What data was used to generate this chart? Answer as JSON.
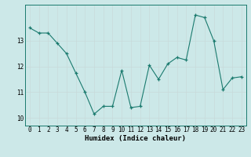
{
  "x": [
    0,
    1,
    2,
    3,
    4,
    5,
    6,
    7,
    8,
    9,
    10,
    11,
    12,
    13,
    14,
    15,
    16,
    17,
    18,
    19,
    20,
    21,
    22,
    23
  ],
  "y": [
    13.5,
    13.3,
    13.3,
    12.9,
    12.5,
    11.75,
    11.0,
    10.15,
    10.45,
    10.45,
    11.85,
    10.4,
    10.45,
    12.05,
    11.5,
    12.1,
    12.35,
    12.25,
    14.0,
    13.9,
    13.0,
    11.1,
    11.55,
    11.6
  ],
  "line_color": "#1a7a6e",
  "marker": "+",
  "bg_color": "#cce8e8",
  "grid_color_major": "#b8d8d8",
  "grid_color_minor": "#d4eaea",
  "xlabel": "Humidex (Indice chaleur)",
  "ylim": [
    9.7,
    14.4
  ],
  "xlim": [
    -0.5,
    23.5
  ],
  "yticks": [
    10,
    11,
    12,
    13
  ],
  "xticks": [
    0,
    1,
    2,
    3,
    4,
    5,
    6,
    7,
    8,
    9,
    10,
    11,
    12,
    13,
    14,
    15,
    16,
    17,
    18,
    19,
    20,
    21,
    22,
    23
  ],
  "xlabel_fontsize": 6.5,
  "tick_fontsize": 5.5
}
